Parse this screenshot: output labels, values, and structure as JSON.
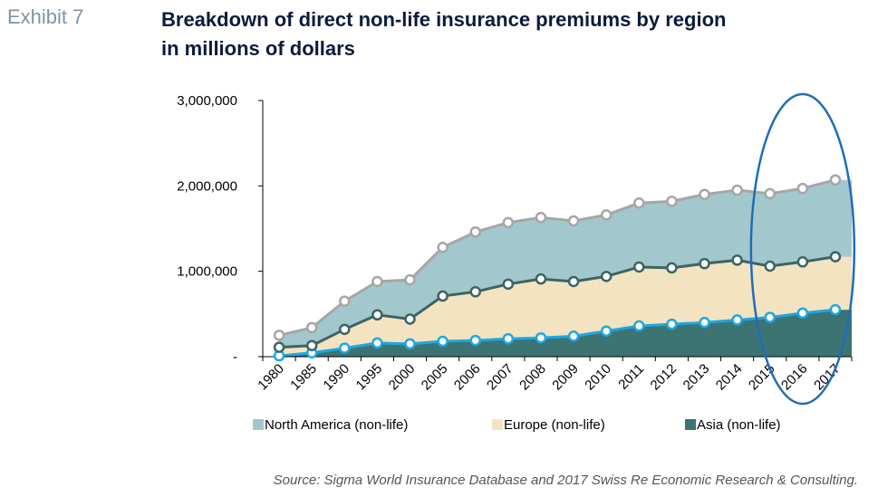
{
  "header": {
    "exhibit": "Exhibit 7",
    "title_line1": "Breakdown of direct non-life insurance premiums by region",
    "title_line2": "in millions of dollars"
  },
  "source": "Source: Sigma World Insurance Database and 2017 Swiss Re Economic Research & Consulting.",
  "colors": {
    "north_america": "#a2c8ce",
    "europe": "#f3e3c0",
    "asia": "#3c7474",
    "na_line": "#a6a6a6",
    "eu_line": "#3c6464",
    "asia_line": "#1ea7e1",
    "highlight": "#1f6db7",
    "axis": "#000000"
  },
  "chart_data": {
    "type": "area",
    "stacked": true,
    "categories": [
      "1980",
      "1985",
      "1990",
      "1995",
      "2000",
      "2005",
      "2006",
      "2007",
      "2008",
      "2009",
      "2010",
      "2011",
      "2012",
      "2013",
      "2014",
      "2015",
      "2016",
      "2017"
    ],
    "series": [
      {
        "name": "Asia (non-life)",
        "values": [
          10000,
          45000,
          100000,
          160000,
          150000,
          180000,
          190000,
          210000,
          220000,
          240000,
          300000,
          360000,
          380000,
          400000,
          430000,
          460000,
          510000,
          550000
        ]
      },
      {
        "name": "Europe (non-life)",
        "values": [
          100000,
          85000,
          220000,
          330000,
          290000,
          530000,
          570000,
          640000,
          690000,
          640000,
          640000,
          690000,
          660000,
          690000,
          700000,
          600000,
          600000,
          620000
        ]
      },
      {
        "name": "North America (non-life)",
        "values": [
          140000,
          210000,
          330000,
          390000,
          460000,
          570000,
          700000,
          720000,
          720000,
          710000,
          720000,
          750000,
          780000,
          810000,
          820000,
          850000,
          860000,
          900000
        ]
      }
    ],
    "cumulative_markers": [
      {
        "series": "Asia (non-life)",
        "values": [
          10000,
          45000,
          100000,
          160000,
          150000,
          180000,
          190000,
          210000,
          220000,
          240000,
          300000,
          360000,
          380000,
          400000,
          430000,
          460000,
          510000,
          550000
        ]
      },
      {
        "series": "Europe (non-life)",
        "values": [
          110000,
          130000,
          320000,
          490000,
          440000,
          710000,
          760000,
          850000,
          910000,
          880000,
          940000,
          1050000,
          1040000,
          1090000,
          1130000,
          1060000,
          1110000,
          1170000
        ]
      },
      {
        "series": "North America (non-life)",
        "values": [
          250000,
          340000,
          650000,
          880000,
          900000,
          1280000,
          1460000,
          1570000,
          1630000,
          1590000,
          1660000,
          1800000,
          1820000,
          1900000,
          1950000,
          1910000,
          1970000,
          2070000
        ]
      }
    ],
    "y_ticks": [
      "-",
      "1,000,000",
      "2,000,000",
      "3,000,000"
    ],
    "ylim": [
      0,
      3000000
    ],
    "legend_position": "bottom",
    "legend": [
      "North America (non-life)",
      "Europe (non-life)",
      "Asia (non-life)"
    ],
    "annotation": "blue ellipse highlighting 2015-2017"
  }
}
